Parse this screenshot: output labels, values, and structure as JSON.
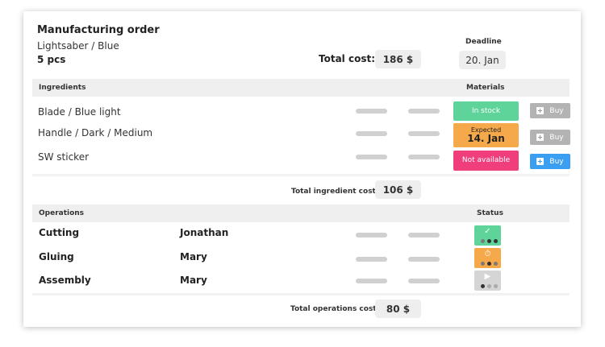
{
  "order": {
    "title": "Manufacturing order",
    "product": "Lightsaber / Blue",
    "quantity": "5 pcs",
    "deadline_label": "Deadline",
    "deadline": "20. Jan",
    "total_cost_label": "Total cost:",
    "total_cost": "186 $"
  },
  "ingredients": {
    "header": "Ingredients",
    "materials_header": "Materials",
    "items": [
      {
        "name": "Blade / Blue light",
        "status": "In stock",
        "status_color": "#5ed49a",
        "buy_label": "Buy",
        "buy_enabled": false
      },
      {
        "name": "Handle / Dark / Medium",
        "status_small": "Expected",
        "status_big": "14. Jan",
        "status_color": "#f5a94a",
        "buy_label": "Buy",
        "buy_enabled": false
      },
      {
        "name": "SW sticker",
        "status": "Not available",
        "status_color": "#f03e7d",
        "buy_label": "Buy",
        "buy_enabled": true
      }
    ],
    "total_label": "Total ingredient cost:",
    "total": "106 $"
  },
  "operations": {
    "header": "Operations",
    "status_header": "Status",
    "items": [
      {
        "name": "Cutting",
        "worker": "Jonathan",
        "state_icon": "check-icon",
        "state_color": "#5ed49a"
      },
      {
        "name": "Gluing",
        "worker": "Mary",
        "state_icon": "stopwatch-icon",
        "state_color": "#f5a94a"
      },
      {
        "name": "Assembly",
        "worker": "Mary",
        "state_icon": "play-icon",
        "state_color": "#d5d5d5"
      }
    ],
    "total_label": "Total operations cost:",
    "total": "80 $"
  }
}
